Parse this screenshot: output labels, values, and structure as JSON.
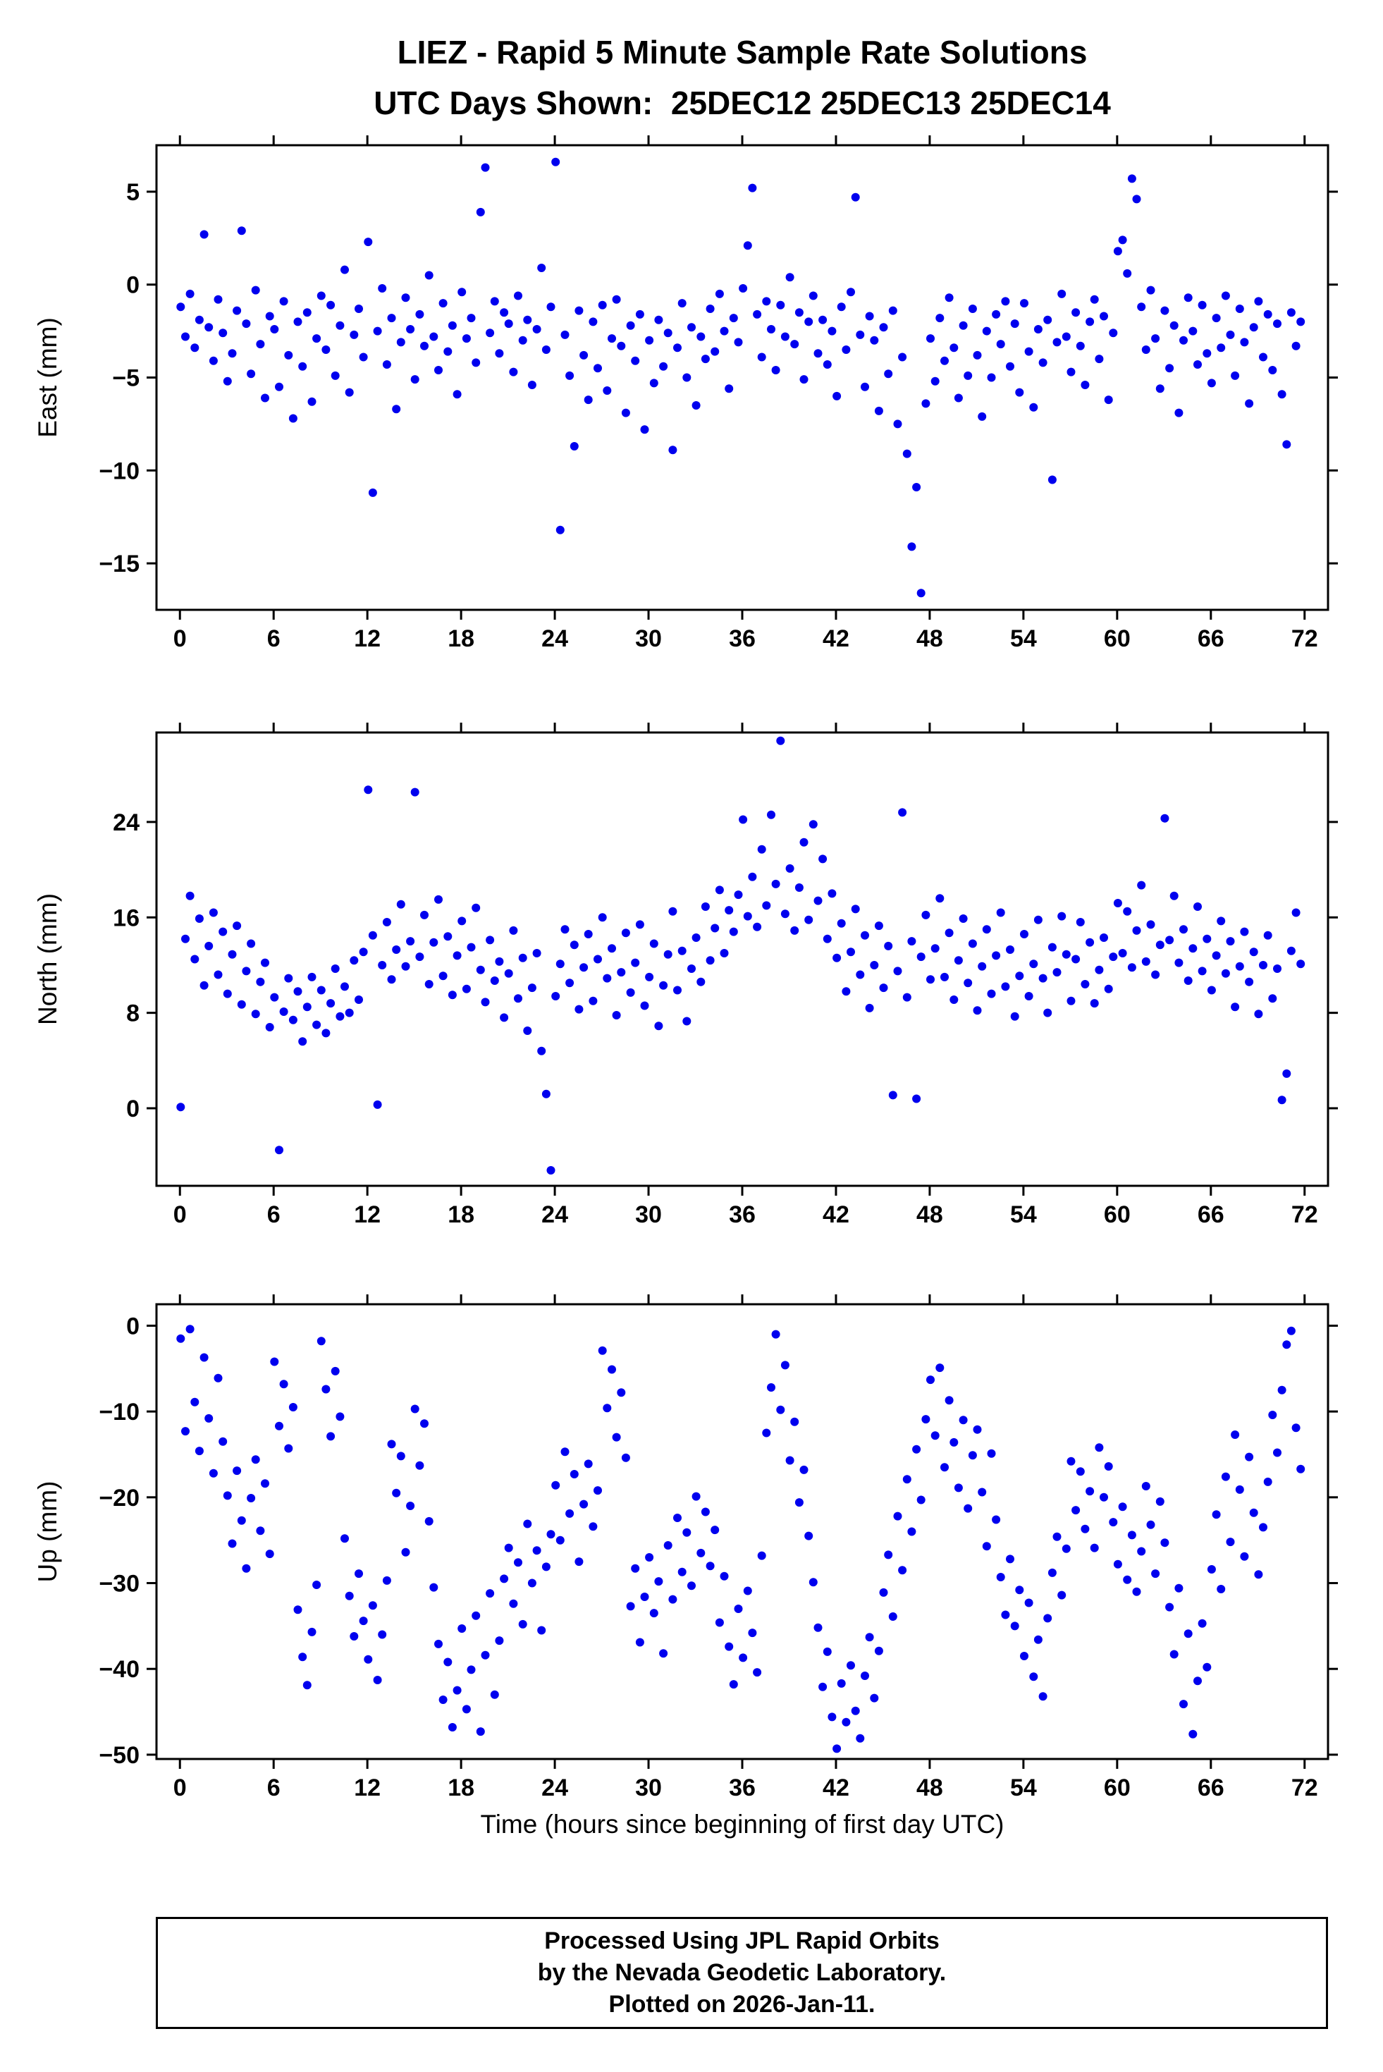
{
  "header": {
    "title_line1": "LIEZ - Rapid 5 Minute Sample Rate Solutions",
    "title_line2": "UTC Days Shown:  25DEC12 25DEC13 25DEC14"
  },
  "footer": {
    "lines": [
      "Processed Using JPL Rapid Orbits",
      "by the Nevada Geodetic Laboratory.",
      "Plotted on 2026-Jan-11."
    ]
  },
  "chart_data": {
    "type": "scatter",
    "title_line1": "LIEZ - Rapid 5 Minute Sample Rate Solutions",
    "title_line2": "UTC Days Shown:  25DEC12 25DEC13 25DEC14",
    "xlabel": "Time (hours since beginning of first day UTC)",
    "xlim": [
      -1.5,
      73.5
    ],
    "x_ticks": [
      0,
      6,
      12,
      18,
      24,
      30,
      36,
      42,
      48,
      54,
      60,
      66,
      72
    ],
    "x_start": 0.05,
    "x_step": 0.3,
    "marker_color": "#0000EE",
    "grid": false,
    "legend": "none",
    "panels": [
      {
        "name": "east",
        "ylabel": "East (mm)",
        "ylim": [
          -17.5,
          7.5
        ],
        "y_ticks": [
          5,
          0,
          -5,
          -10,
          -15
        ],
        "y": [
          -1.2,
          -2.8,
          -0.5,
          -3.4,
          -1.9,
          2.7,
          -2.3,
          -4.1,
          -0.8,
          -2.6,
          -5.2,
          -3.7,
          -1.4,
          2.9,
          -2.1,
          -4.8,
          -0.3,
          -3.2,
          -6.1,
          -1.7,
          -2.4,
          -5.5,
          -0.9,
          -3.8,
          -7.2,
          -2.0,
          -4.4,
          -1.5,
          -6.3,
          -2.9,
          -0.6,
          -3.5,
          -1.1,
          -4.9,
          -2.2,
          0.8,
          -5.8,
          -2.7,
          -1.3,
          -3.9,
          2.3,
          -11.2,
          -2.5,
          -0.2,
          -4.3,
          -1.8,
          -6.7,
          -3.1,
          -0.7,
          -2.4,
          -5.1,
          -1.6,
          -3.3,
          0.5,
          -2.8,
          -4.6,
          -1.0,
          -3.6,
          -2.2,
          -5.9,
          -0.4,
          -2.9,
          -1.8,
          -4.2,
          3.9,
          6.3,
          -2.6,
          -0.9,
          -3.7,
          -1.5,
          -2.1,
          -4.7,
          -0.6,
          -3.0,
          -1.9,
          -5.4,
          -2.4,
          0.9,
          -3.5,
          -1.2,
          6.6,
          -13.2,
          -2.7,
          -4.9,
          -8.7,
          -1.4,
          -3.8,
          -6.2,
          -2.0,
          -4.5,
          -1.1,
          -5.7,
          -2.9,
          -0.8,
          -3.3,
          -6.9,
          -2.2,
          -4.1,
          -1.6,
          -7.8,
          -3.0,
          -5.3,
          -1.9,
          -4.4,
          -2.6,
          -8.9,
          -3.4,
          -1.0,
          -5.0,
          -2.3,
          -6.5,
          -2.8,
          -4.0,
          -1.3,
          -3.6,
          -0.5,
          -2.5,
          -5.6,
          -1.8,
          -3.1,
          -0.2,
          2.1,
          5.2,
          -1.6,
          -3.9,
          -0.9,
          -2.4,
          -4.6,
          -1.1,
          -2.8,
          0.4,
          -3.2,
          -1.5,
          -5.1,
          -2.0,
          -0.6,
          -3.7,
          -1.9,
          -4.3,
          -2.5,
          -6.0,
          -1.2,
          -3.5,
          -0.4,
          4.7,
          -2.7,
          -5.5,
          -1.7,
          -3.0,
          -6.8,
          -2.3,
          -4.8,
          -1.4,
          -7.5,
          -3.9,
          -9.1,
          -14.1,
          -10.9,
          -16.6,
          -6.4,
          -2.9,
          -5.2,
          -1.8,
          -4.1,
          -0.7,
          -3.4,
          -6.1,
          -2.2,
          -4.9,
          -1.3,
          -3.8,
          -7.1,
          -2.5,
          -5.0,
          -1.6,
          -3.2,
          -0.9,
          -4.4,
          -2.1,
          -5.8,
          -1.0,
          -3.6,
          -6.6,
          -2.4,
          -4.2,
          -1.9,
          -10.5,
          -3.1,
          -0.5,
          -2.8,
          -4.7,
          -1.5,
          -3.3,
          -5.4,
          -2.0,
          -0.8,
          -4.0,
          -1.7,
          -6.2,
          -2.6,
          1.8,
          2.4,
          0.6,
          5.7,
          4.6,
          -1.2,
          -3.5,
          -0.3,
          -2.9,
          -5.6,
          -1.4,
          -4.5,
          -2.2,
          -6.9,
          -3.0,
          -0.7,
          -2.5,
          -4.3,
          -1.1,
          -3.7,
          -5.3,
          -1.8,
          -3.4,
          -0.6,
          -2.7,
          -4.9,
          -1.3,
          -3.1,
          -6.4,
          -2.3,
          -0.9,
          -3.9,
          -1.6,
          -4.6,
          -2.1,
          -5.9,
          -8.6,
          -1.5,
          -3.3,
          -2.0
        ]
      },
      {
        "name": "north",
        "ylabel": "North (mm)",
        "ylim": [
          -6.5,
          31.5
        ],
        "y_ticks": [
          24,
          16,
          8,
          0
        ],
        "y": [
          0.1,
          14.2,
          17.8,
          12.5,
          15.9,
          10.3,
          13.6,
          16.4,
          11.2,
          14.8,
          9.6,
          12.9,
          15.3,
          8.7,
          11.5,
          13.8,
          7.9,
          10.6,
          12.2,
          6.8,
          9.3,
          -3.5,
          8.1,
          10.9,
          7.4,
          9.8,
          5.6,
          8.5,
          11.0,
          7.0,
          9.9,
          6.3,
          8.8,
          11.7,
          7.7,
          10.2,
          8.0,
          12.4,
          9.1,
          13.1,
          26.7,
          14.5,
          0.3,
          12.0,
          15.6,
          10.8,
          13.3,
          17.1,
          11.9,
          14.0,
          26.5,
          12.7,
          16.2,
          10.4,
          13.9,
          17.5,
          11.1,
          14.4,
          9.5,
          12.8,
          15.7,
          10.0,
          13.5,
          16.8,
          11.6,
          8.9,
          14.1,
          10.7,
          12.3,
          7.6,
          11.3,
          14.9,
          9.2,
          12.6,
          6.5,
          10.1,
          13.0,
          4.8,
          1.2,
          -5.2,
          9.4,
          12.1,
          15.0,
          10.5,
          13.7,
          8.3,
          11.8,
          14.6,
          9.0,
          12.5,
          16.0,
          10.9,
          13.4,
          7.8,
          11.4,
          14.7,
          9.7,
          12.2,
          15.4,
          8.6,
          11.0,
          13.8,
          6.9,
          10.3,
          12.9,
          16.5,
          9.9,
          13.2,
          7.3,
          11.7,
          14.3,
          10.6,
          16.9,
          12.4,
          15.1,
          18.3,
          13.0,
          16.6,
          14.8,
          17.9,
          24.2,
          16.1,
          19.4,
          15.2,
          21.7,
          17.0,
          24.6,
          18.8,
          30.8,
          16.3,
          20.1,
          14.9,
          18.5,
          22.3,
          15.8,
          23.8,
          17.4,
          20.9,
          14.2,
          18.0,
          12.6,
          15.5,
          9.8,
          13.1,
          16.7,
          11.2,
          14.5,
          8.4,
          12.0,
          15.3,
          10.1,
          13.6,
          1.1,
          11.5,
          24.8,
          9.3,
          14.0,
          0.8,
          12.7,
          16.2,
          10.8,
          13.4,
          17.6,
          11.0,
          14.7,
          9.1,
          12.4,
          15.9,
          10.5,
          13.8,
          8.2,
          11.9,
          15.0,
          9.6,
          12.8,
          16.4,
          10.2,
          13.3,
          7.7,
          11.1,
          14.6,
          9.4,
          12.1,
          15.8,
          10.9,
          8.0,
          13.5,
          11.4,
          16.1,
          12.9,
          9.0,
          12.5,
          15.6,
          10.4,
          13.9,
          8.8,
          11.6,
          14.3,
          10.0,
          12.7,
          17.2,
          13.0,
          16.5,
          11.8,
          14.9,
          18.7,
          12.3,
          15.4,
          11.2,
          13.7,
          24.3,
          14.1,
          17.8,
          12.2,
          15.0,
          10.7,
          13.4,
          16.9,
          11.5,
          14.2,
          9.9,
          12.8,
          15.7,
          11.3,
          14.0,
          8.5,
          11.9,
          14.8,
          10.6,
          13.1,
          7.9,
          12.0,
          14.5,
          9.2,
          11.7,
          0.7,
          2.9,
          13.2,
          16.4,
          12.1
        ]
      },
      {
        "name": "up",
        "ylabel": "Up (mm)",
        "ylim": [
          -50.5,
          2.5
        ],
        "y_ticks": [
          0,
          -10,
          -20,
          -30,
          -40,
          -50
        ],
        "y": [
          -1.5,
          -12.3,
          -0.4,
          -8.9,
          -14.6,
          -3.7,
          -10.8,
          -17.2,
          -6.1,
          -13.5,
          -19.8,
          -25.4,
          -16.9,
          -22.7,
          -28.3,
          -20.1,
          -15.6,
          -23.9,
          -18.4,
          -26.6,
          -4.2,
          -11.7,
          -6.8,
          -14.3,
          -9.5,
          -33.1,
          -38.6,
          -41.9,
          -35.7,
          -30.2,
          -1.8,
          -7.4,
          -12.9,
          -5.3,
          -10.6,
          -24.8,
          -31.5,
          -36.2,
          -28.9,
          -34.4,
          -38.9,
          -32.6,
          -41.3,
          -36.0,
          -29.7,
          -13.8,
          -19.5,
          -15.2,
          -26.4,
          -21.0,
          -9.7,
          -16.3,
          -11.4,
          -22.8,
          -30.5,
          -37.1,
          -43.6,
          -39.2,
          -46.8,
          -42.5,
          -35.3,
          -44.7,
          -40.1,
          -33.8,
          -47.3,
          -38.4,
          -31.2,
          -43.0,
          -36.7,
          -29.5,
          -25.9,
          -32.4,
          -27.6,
          -34.8,
          -23.1,
          -30.0,
          -26.2,
          -35.5,
          -28.1,
          -24.3,
          -18.6,
          -25.0,
          -14.7,
          -21.9,
          -17.3,
          -27.5,
          -20.8,
          -16.1,
          -23.4,
          -19.2,
          -2.9,
          -9.6,
          -5.1,
          -13.0,
          -7.8,
          -15.4,
          -32.7,
          -28.3,
          -36.9,
          -31.6,
          -27.0,
          -33.5,
          -29.8,
          -38.2,
          -25.6,
          -31.9,
          -22.4,
          -28.7,
          -24.1,
          -30.3,
          -19.9,
          -26.5,
          -21.7,
          -28.0,
          -23.8,
          -34.6,
          -29.2,
          -37.4,
          -41.8,
          -33.0,
          -38.7,
          -30.9,
          -35.8,
          -40.4,
          -26.8,
          -12.5,
          -7.2,
          -1.0,
          -9.8,
          -4.6,
          -15.7,
          -11.2,
          -20.6,
          -16.8,
          -24.5,
          -29.9,
          -35.2,
          -42.1,
          -38.0,
          -45.6,
          -49.3,
          -41.7,
          -46.2,
          -39.6,
          -44.9,
          -48.1,
          -40.8,
          -36.3,
          -43.4,
          -37.9,
          -31.1,
          -26.7,
          -33.9,
          -22.2,
          -28.5,
          -17.9,
          -24.0,
          -14.4,
          -20.3,
          -10.9,
          -6.3,
          -12.8,
          -4.9,
          -16.5,
          -8.7,
          -13.6,
          -18.9,
          -11.0,
          -21.3,
          -15.1,
          -12.1,
          -19.4,
          -25.7,
          -14.9,
          -22.6,
          -29.3,
          -33.7,
          -27.2,
          -35.0,
          -30.8,
          -38.5,
          -32.3,
          -40.9,
          -36.6,
          -43.2,
          -34.1,
          -28.8,
          -24.6,
          -31.4,
          -26.0,
          -15.8,
          -21.5,
          -17.0,
          -23.7,
          -19.3,
          -25.9,
          -14.2,
          -20.0,
          -16.4,
          -22.9,
          -27.8,
          -21.1,
          -29.6,
          -24.4,
          -31.0,
          -26.3,
          -18.7,
          -23.2,
          -28.9,
          -20.5,
          -25.3,
          -32.8,
          -38.3,
          -30.6,
          -44.1,
          -35.9,
          -47.6,
          -41.4,
          -34.7,
          -39.8,
          -28.4,
          -22.0,
          -30.7,
          -17.6,
          -25.2,
          -12.7,
          -19.1,
          -26.9,
          -15.3,
          -21.8,
          -29.0,
          -23.5,
          -18.2,
          -10.4,
          -14.8,
          -7.5,
          -2.2,
          -0.6,
          -11.9,
          -16.7
        ]
      }
    ]
  }
}
